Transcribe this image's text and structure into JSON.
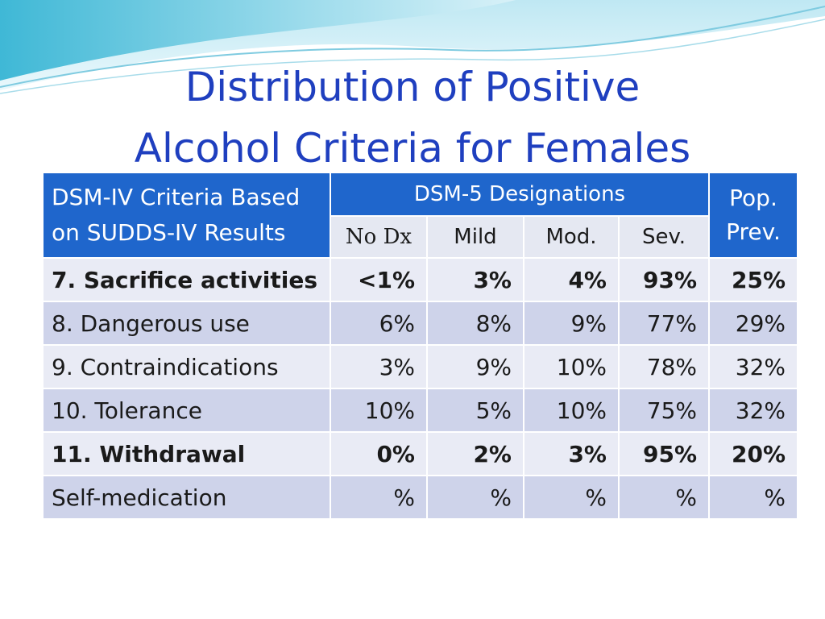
{
  "slide": {
    "title_line1": "Distribution of Positive",
    "title_line2": "Alcohol Criteria for Females"
  },
  "table": {
    "header": {
      "criteria_line1": "DSM-IV Criteria Based",
      "criteria_line2": "on SUDDS-IV Results",
      "group": "DSM-5 Designations",
      "pop_line1": "Pop.",
      "pop_line2": "Prev.",
      "sub": [
        "No Dx",
        "Mild",
        "Mod.",
        "Sev."
      ]
    },
    "rows": [
      {
        "label": "7. Sacrifice activities",
        "no_dx": "<1%",
        "mild": "3%",
        "mod": "4%",
        "sev": "93%",
        "pop": "25%",
        "bold": true
      },
      {
        "label": "8. Dangerous use",
        "no_dx": "6%",
        "mild": "8%",
        "mod": "9%",
        "sev": "77%",
        "pop": "29%",
        "bold": false
      },
      {
        "label": "9. Contraindications",
        "no_dx": "3%",
        "mild": "9%",
        "mod": "10%",
        "sev": "78%",
        "pop": "32%",
        "bold": false
      },
      {
        "label": "10. Tolerance",
        "no_dx": "10%",
        "mild": "5%",
        "mod": "10%",
        "sev": "75%",
        "pop": "32%",
        "bold": false
      },
      {
        "label": "11. Withdrawal",
        "no_dx": "0%",
        "mild": "2%",
        "mod": "3%",
        "sev": "95%",
        "pop": "20%",
        "bold": true
      },
      {
        "label": "Self-medication",
        "no_dx": "%",
        "mild": "%",
        "mod": "%",
        "sev": "%",
        "pop": "%",
        "bold": false
      }
    ]
  },
  "colors": {
    "title": "#1f3fbf",
    "header_blue": "#1f66cc",
    "row_light": "#e9ebf5",
    "row_dark": "#ced3ea",
    "wave_teal": "#3fb8d6"
  }
}
